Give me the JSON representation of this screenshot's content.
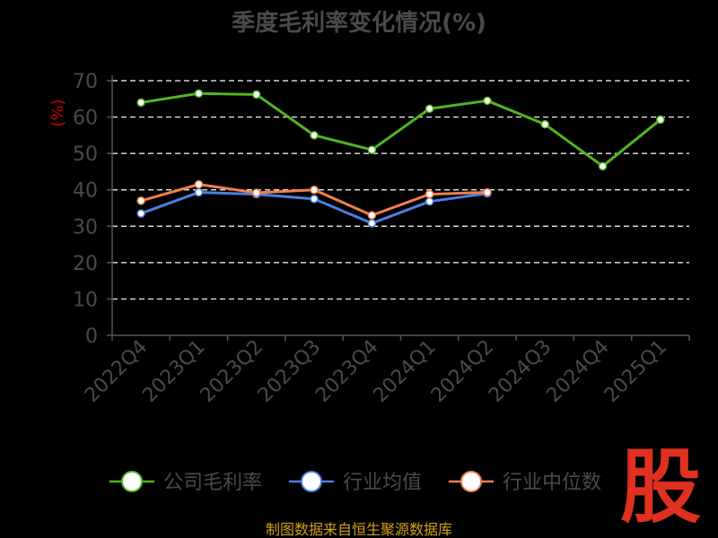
{
  "chart_data": {
    "type": "line",
    "title": "季度毛利率变化情况(%)",
    "ylabel": "(%)",
    "xlabel": "",
    "ylim": [
      0,
      70
    ],
    "yticks": [
      0,
      10,
      20,
      30,
      40,
      50,
      60,
      70
    ],
    "grid": true,
    "legend_position": "bottom",
    "categories": [
      "2022Q4",
      "2023Q1",
      "2023Q2",
      "2023Q3",
      "2023Q4",
      "2024Q1",
      "2024Q2",
      "2024Q3",
      "2024Q4",
      "2025Q1"
    ],
    "series": [
      {
        "name": "公司毛利率",
        "color": "#52b520",
        "values": [
          64.0,
          66.5,
          66.2,
          55.0,
          51.0,
          62.3,
          64.5,
          58.0,
          46.5,
          59.3
        ]
      },
      {
        "name": "行业均值",
        "color": "#4a7fe0",
        "values": [
          33.5,
          39.3,
          38.8,
          37.5,
          30.8,
          36.8,
          39.0,
          null,
          null,
          null
        ]
      },
      {
        "name": "行业中位数",
        "color": "#f07f4f",
        "values": [
          37.0,
          41.5,
          39.2,
          40.0,
          33.0,
          38.8,
          39.3,
          null,
          null,
          null
        ]
      }
    ]
  },
  "footer": {
    "source": "制图数据来自恒生聚源数据库"
  },
  "logo": {
    "text": "股"
  }
}
